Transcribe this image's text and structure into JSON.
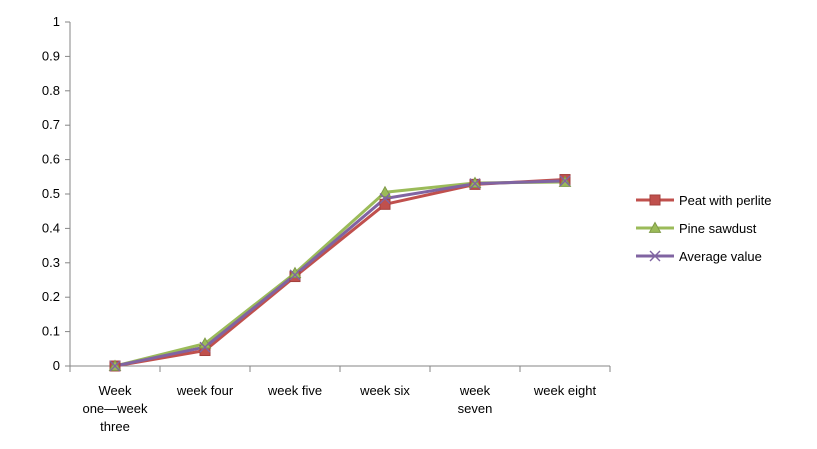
{
  "chart_data": {
    "type": "line",
    "title": "",
    "xlabel": "",
    "ylabel": "",
    "categories": [
      [
        "Week",
        "one—week",
        "three"
      ],
      [
        "week four"
      ],
      [
        "week five"
      ],
      [
        "week six"
      ],
      [
        "week",
        "seven"
      ],
      [
        "week eight"
      ]
    ],
    "ylim": [
      0,
      1
    ],
    "yticks": [
      "0",
      "0.1",
      "0.2",
      "0.3",
      "0.4",
      "0.5",
      "0.6",
      "0.7",
      "0.8",
      "0.9",
      "1"
    ],
    "grid": false,
    "legend_position": "right",
    "series": [
      {
        "name": "Peat with perlite",
        "color": "#c0504d",
        "marker": "square",
        "values": [
          0,
          0.045,
          0.26,
          0.47,
          0.528,
          0.542
        ]
      },
      {
        "name": "Pine sawdust",
        "color": "#9bbb59",
        "marker": "triangle",
        "values": [
          0,
          0.065,
          0.27,
          0.505,
          0.532,
          0.535
        ]
      },
      {
        "name": "Average value",
        "color": "#8064a2",
        "marker": "x",
        "values": [
          0,
          0.055,
          0.265,
          0.487,
          0.53,
          0.538
        ]
      }
    ]
  }
}
